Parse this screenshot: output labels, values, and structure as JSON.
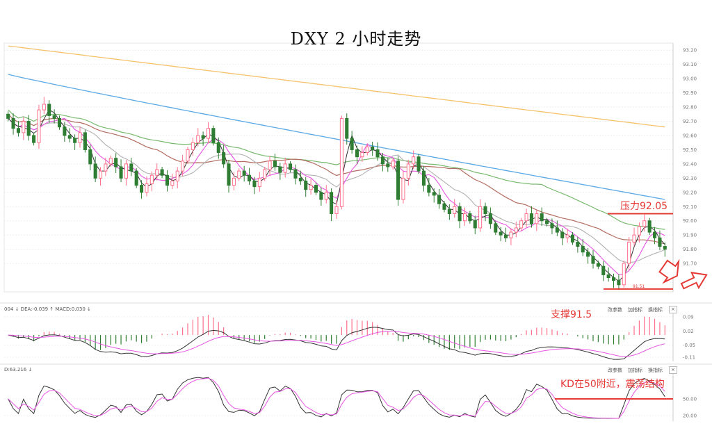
{
  "title": "DXY 2 小时走势",
  "annotations": {
    "resistance": "压力92.05",
    "support": "支撑91.5",
    "kd_note": "KD在50附近，震荡结构",
    "low_mark": "91.51"
  },
  "macd_panel": {
    "header": "004 ↓ DEA:-0.039 ↑ MACD:0.030 ↓",
    "buttons": [
      "改参数",
      "加指标",
      "换指标"
    ],
    "close_icon": "×"
  },
  "kd_panel": {
    "header": "D:63.216 ↓",
    "buttons": [
      "改参数",
      "加指标",
      "换指标"
    ],
    "close_icon": "×"
  },
  "colors": {
    "up": "#ff6f8b",
    "down": "#2e7d32",
    "ma_orange": "#f5c26b",
    "ma_blue": "#5aa9e6",
    "ma_green": "#76b96b",
    "ma_brown": "#b26b5e",
    "ma_gray": "#b0b0b0",
    "ma_pink": "#e754e2",
    "ma_black": "#333333",
    "annotation": "#e53935"
  },
  "chart_data": [
    {
      "type": "candlestick",
      "title": "DXY 2 小时走势",
      "ylim": [
        91.5,
        93.25
      ],
      "yticks": [
        "93.20",
        "93.10",
        "93.00",
        "92.90",
        "92.80",
        "92.70",
        "92.60",
        "92.50",
        "92.40",
        "92.30",
        "92.20",
        "92.10",
        "92.00",
        "91.90",
        "91.80",
        "91.70"
      ],
      "grid": true,
      "horizontal_lines": [
        {
          "label": "压力92.05",
          "value": 92.05
        },
        {
          "label": "支撑91.5",
          "value": 91.52
        }
      ],
      "closes": [
        92.72,
        92.65,
        92.62,
        92.7,
        92.6,
        92.55,
        92.78,
        92.82,
        92.74,
        92.72,
        92.66,
        92.6,
        92.58,
        92.55,
        92.62,
        92.5,
        92.4,
        92.3,
        92.35,
        92.4,
        92.44,
        92.38,
        92.3,
        92.4,
        92.35,
        92.25,
        92.2,
        92.26,
        92.32,
        92.36,
        92.32,
        92.25,
        92.28,
        92.35,
        92.42,
        92.5,
        92.55,
        92.6,
        92.58,
        92.65,
        92.55,
        92.48,
        92.4,
        92.25,
        92.3,
        92.35,
        92.32,
        92.28,
        92.24,
        92.3,
        92.36,
        92.42,
        92.38,
        92.34,
        92.4,
        92.36,
        92.3,
        92.28,
        92.22,
        92.25,
        92.2,
        92.15,
        92.2,
        92.05,
        92.1,
        92.72,
        92.58,
        92.5,
        92.45,
        92.48,
        92.52,
        92.5,
        92.45,
        92.4,
        92.38,
        92.42,
        92.15,
        92.3,
        92.4,
        92.45,
        92.35,
        92.25,
        92.2,
        92.18,
        92.12,
        92.08,
        92.05,
        92.1,
        92.0,
        92.05,
        92.0,
        91.95,
        92.1,
        92.05,
        91.98,
        91.92,
        91.9,
        91.88,
        91.92,
        91.95,
        92.0,
        92.05,
        91.98,
        92.05,
        92.0,
        91.98,
        91.95,
        91.92,
        91.88,
        91.9,
        91.85,
        91.82,
        91.78,
        91.75,
        91.7,
        91.68,
        91.62,
        91.6,
        91.58,
        91.55,
        91.7,
        91.85,
        91.9,
        91.96,
        92.0,
        91.92,
        91.88,
        91.82,
        91.8
      ]
    },
    {
      "type": "bar",
      "name": "MACD",
      "header": "004 ↓ DEA:-0.039 ↑ MACD:0.030 ↓",
      "ylim": [
        -0.13,
        0.11
      ],
      "yticks": [
        "0.09",
        "0.02",
        "-0.05",
        "-0.11"
      ]
    },
    {
      "type": "line",
      "name": "KD",
      "header": "D:63.216 ↓",
      "ylim": [
        10,
        95
      ],
      "yticks": [
        "50.00",
        "20.00"
      ],
      "reference_line": 50
    }
  ]
}
